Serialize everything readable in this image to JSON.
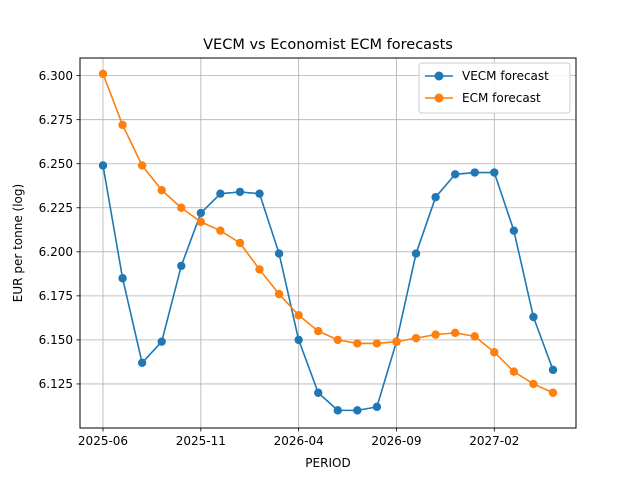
{
  "chart_data": {
    "type": "line",
    "title": "VECM vs Economist ECM forecasts",
    "xlabel": "PERIOD",
    "ylabel": "EUR per tonne (log)",
    "x": [
      "2025-06",
      "2025-07",
      "2025-08",
      "2025-09",
      "2025-10",
      "2025-11",
      "2025-12",
      "2026-01",
      "2026-02",
      "2026-03",
      "2026-04",
      "2026-05",
      "2026-06",
      "2026-07",
      "2026-08",
      "2026-09",
      "2026-10",
      "2026-11",
      "2026-12",
      "2027-01",
      "2027-02",
      "2027-03",
      "2027-04",
      "2027-05"
    ],
    "xticks": [
      "2025-06",
      "2025-11",
      "2026-04",
      "2026-09",
      "2027-02"
    ],
    "yticks": [
      "6.125",
      "6.150",
      "6.175",
      "6.200",
      "6.225",
      "6.250",
      "6.275",
      "6.300"
    ],
    "ylim": [
      6.1,
      6.31
    ],
    "grid": true,
    "legend_position": "top-right",
    "series": [
      {
        "name": "VECM forecast",
        "color": "#1f77b4",
        "values": [
          6.249,
          6.185,
          6.137,
          6.149,
          6.192,
          6.222,
          6.233,
          6.234,
          6.233,
          6.199,
          6.15,
          6.12,
          6.11,
          6.11,
          6.112,
          6.149,
          6.199,
          6.231,
          6.244,
          6.245,
          6.245,
          6.212,
          6.163,
          6.133
        ]
      },
      {
        "name": "ECM forecast",
        "color": "#ff7f0e",
        "values": [
          6.301,
          6.272,
          6.249,
          6.235,
          6.225,
          6.217,
          6.212,
          6.205,
          6.19,
          6.176,
          6.164,
          6.155,
          6.15,
          6.148,
          6.148,
          6.149,
          6.151,
          6.153,
          6.154,
          6.152,
          6.143,
          6.132,
          6.125,
          6.12
        ]
      }
    ]
  }
}
